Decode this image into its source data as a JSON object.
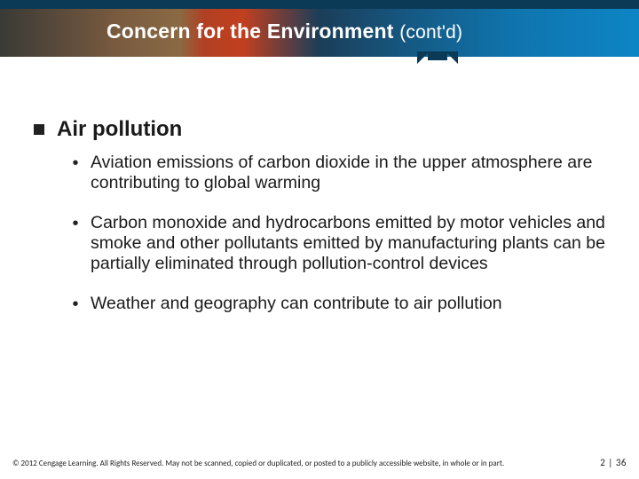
{
  "header": {
    "title_main": "Concern for the Environment",
    "title_contd": "(cont'd)"
  },
  "body": {
    "lvl1": {
      "text": "Air pollution",
      "bullets": [
        "Aviation emissions of carbon dioxide in the upper atmosphere are contributing to global warming",
        "Carbon monoxide and hydrocarbons emitted by motor vehicles and smoke and other pollutants emitted by manufacturing plants can be partially eliminated through pollution-control devices",
        "Weather and geography can contribute to air pollution"
      ]
    }
  },
  "footer": {
    "copyright": "© 2012 Cengage Learning. All Rights Reserved. May not be scanned, copied or duplicated, or posted to a publicly accessible website, in whole or in part.",
    "page": "2 | 36"
  },
  "colors": {
    "header_rule": "#0a3a56",
    "text": "#1a1a1a"
  }
}
